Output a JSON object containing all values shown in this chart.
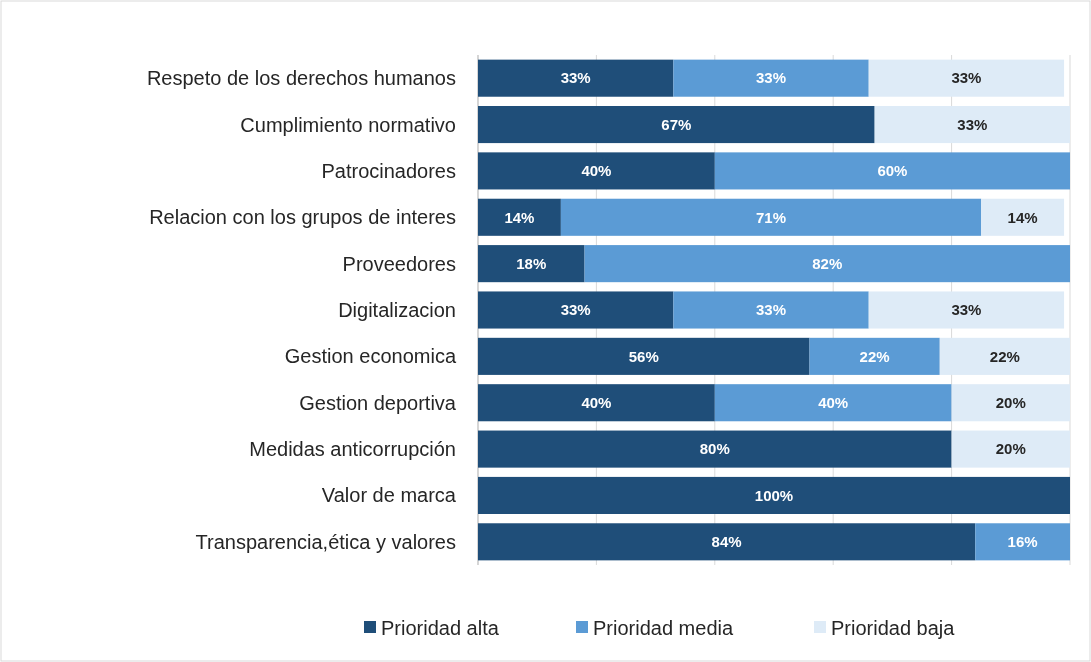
{
  "chart_data": {
    "type": "bar",
    "orientation": "horizontal",
    "stacked": true,
    "grid": "x",
    "legend": "bottom",
    "tick_labels": "y",
    "categories": [
      "Respeto de los derechos humanos",
      "Cumplimiento normativo",
      "Patrocinadores",
      "Relacion con los grupos de interes",
      "Proveedores",
      "Digitalizacion",
      "Gestion economica",
      "Gestion deportiva",
      "Medidas anticorrupción",
      "Valor de marca",
      "Transparencia,ética y valores"
    ],
    "series": [
      {
        "name": "Prioridad alta",
        "color": "#1f4e79",
        "values": [
          33,
          67,
          40,
          14,
          18,
          33,
          56,
          40,
          80,
          100,
          84
        ],
        "value_labels": [
          "33%",
          "67%",
          "40%",
          "14%",
          "18%",
          "33%",
          "56%",
          "40%",
          "80%",
          "100%",
          "84%"
        ]
      },
      {
        "name": "Prioridad media",
        "color": "#5b9bd5",
        "values": [
          33,
          null,
          60,
          71,
          82,
          33,
          22,
          40,
          null,
          null,
          16
        ],
        "value_labels": [
          "33%",
          null,
          "60%",
          "71%",
          "82%",
          "33%",
          "22%",
          "40%",
          null,
          null,
          "16%"
        ]
      },
      {
        "name": "Prioridad baja",
        "color": "#deebf7",
        "values": [
          33,
          33,
          null,
          14,
          null,
          33,
          22,
          20,
          20,
          null,
          null
        ],
        "value_labels": [
          "33%",
          "33%",
          null,
          "14%",
          null,
          "33%",
          "22%",
          "20%",
          "20%",
          null,
          null
        ]
      }
    ]
  }
}
